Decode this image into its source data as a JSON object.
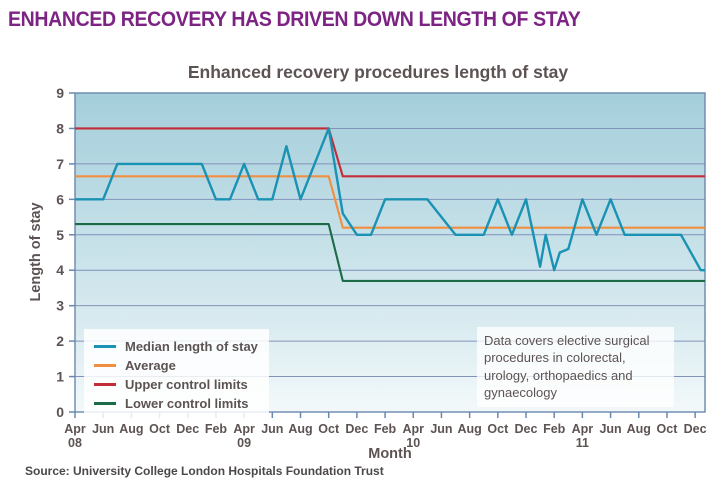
{
  "page": {
    "header": "ENHANCED RECOVERY HAS DRIVEN DOWN LENGTH OF STAY",
    "source": "Source: University College London Hospitals Foundation Trust"
  },
  "colors": {
    "header_accent": "#7c2383",
    "chart_text": "#5d5353",
    "gridline": "#8292ba",
    "axis": "#6a88ae",
    "plot_bg_top": "#a4cedb",
    "plot_bg_bottom": "#f3f9fa",
    "median": "#1992b4",
    "average": "#f08f3f",
    "upper_control": "#c32b38",
    "lower_control": "#1b6b47"
  },
  "chart_data": {
    "type": "line",
    "title": "Enhanced recovery procedures length of stay",
    "xlabel": "Month",
    "ylabel": "Length of stay",
    "ylim": [
      0,
      9
    ],
    "y_ticks": [
      0,
      1,
      2,
      3,
      4,
      5,
      6,
      7,
      8,
      9
    ],
    "x_encoding": "months since Apr 2008 (0 = Apr 08, 44 = Dec 11)",
    "x_tick_step_months": 2,
    "x_ticks": [
      {
        "m": "Apr",
        "y": "08"
      },
      {
        "m": "Jun"
      },
      {
        "m": "Aug"
      },
      {
        "m": "Oct"
      },
      {
        "m": "Dec"
      },
      {
        "m": "Feb"
      },
      {
        "m": "Apr",
        "y": "09"
      },
      {
        "m": "Jun"
      },
      {
        "m": "Aug"
      },
      {
        "m": "Oct"
      },
      {
        "m": "Dec"
      },
      {
        "m": "Feb"
      },
      {
        "m": "Apr",
        "y": "10"
      },
      {
        "m": "Jun"
      },
      {
        "m": "Aug"
      },
      {
        "m": "Oct"
      },
      {
        "m": "Dec"
      },
      {
        "m": "Feb"
      },
      {
        "m": "Apr",
        "y": "11"
      },
      {
        "m": "Jun"
      },
      {
        "m": "Aug"
      },
      {
        "m": "Oct"
      },
      {
        "m": "Dec"
      }
    ],
    "grid": "horizontal gridlines at each integer, plot area framed",
    "legend_position": "inside bottom-left",
    "annotation": "Data covers elective surgical procedures in colorectal, urology, orthopaedics and gynaecology",
    "series": [
      {
        "id": "median",
        "name": "Median length of stay",
        "color": "#1992b4",
        "points": [
          [
            0,
            6
          ],
          [
            2,
            6
          ],
          [
            3,
            7
          ],
          [
            9,
            7
          ],
          [
            10,
            6
          ],
          [
            11,
            6
          ],
          [
            12,
            7
          ],
          [
            13,
            6
          ],
          [
            14,
            6
          ],
          [
            15,
            7.5
          ],
          [
            16,
            6
          ],
          [
            18,
            8
          ],
          [
            19,
            5.6
          ],
          [
            20,
            5
          ],
          [
            21,
            5
          ],
          [
            22,
            6
          ],
          [
            25,
            6
          ],
          [
            27,
            5
          ],
          [
            29,
            5
          ],
          [
            30,
            6
          ],
          [
            31,
            5
          ],
          [
            32,
            6
          ],
          [
            33,
            4.1
          ],
          [
            33.4,
            5
          ],
          [
            34,
            4
          ],
          [
            34.4,
            4.5
          ],
          [
            35,
            4.6
          ],
          [
            36,
            6
          ],
          [
            37,
            5
          ],
          [
            38,
            6
          ],
          [
            39,
            5
          ],
          [
            43,
            5
          ],
          [
            44.4,
            4
          ],
          [
            44.7,
            4
          ]
        ]
      },
      {
        "id": "average",
        "name": "Average",
        "color": "#f08f3f",
        "points": [
          [
            0,
            6.65
          ],
          [
            18,
            6.65
          ],
          [
            19,
            5.2
          ],
          [
            44.7,
            5.2
          ]
        ]
      },
      {
        "id": "upper",
        "name": "Upper control limits",
        "color": "#c32b38",
        "points": [
          [
            0,
            8
          ],
          [
            18,
            8
          ],
          [
            19,
            6.65
          ],
          [
            44.7,
            6.65
          ]
        ]
      },
      {
        "id": "lower",
        "name": "Lower control limits",
        "color": "#1b6b47",
        "points": [
          [
            0,
            5.3
          ],
          [
            18,
            5.3
          ],
          [
            19,
            3.7
          ],
          [
            44.7,
            3.7
          ]
        ]
      }
    ]
  }
}
